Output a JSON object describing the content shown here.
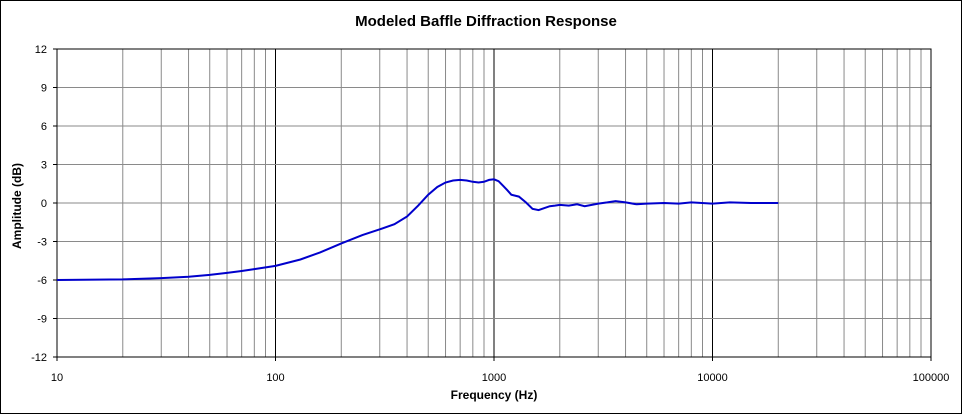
{
  "chart_data": {
    "type": "line",
    "title": "Modeled Baffle Diffraction Response",
    "xlabel": "Frequency (Hz)",
    "ylabel": "Amplitude (dB)",
    "x_scale": "log",
    "xlim": [
      10,
      100000
    ],
    "ylim": [
      -12,
      12
    ],
    "x_ticks": [
      "10",
      "100",
      "1000",
      "10000",
      "100000"
    ],
    "y_ticks": [
      "12",
      "9",
      "6",
      "3",
      "0",
      "-3",
      "-6",
      "-9",
      "-12"
    ],
    "grid": true,
    "legend": "none",
    "line_color": "#0000cc",
    "series": [
      {
        "x": [
          10,
          20,
          30,
          40,
          50,
          60,
          70,
          80,
          100,
          130,
          160,
          200,
          250,
          300,
          350,
          400,
          450,
          500,
          550,
          600,
          650,
          700,
          750,
          800,
          850,
          900,
          950,
          1000,
          1050,
          1100,
          1150,
          1200,
          1300,
          1400,
          1500,
          1600,
          1700,
          1800,
          1900,
          2000,
          2200,
          2400,
          2600,
          2800,
          3000,
          3300,
          3600,
          4000,
          4500,
          5000,
          6000,
          7000,
          8000,
          10000,
          12000,
          15000,
          18000,
          20000
        ],
        "values": [
          -6.0,
          -5.95,
          -5.85,
          -5.75,
          -5.6,
          -5.45,
          -5.3,
          -5.15,
          -4.9,
          -4.4,
          -3.85,
          -3.15,
          -2.5,
          -2.05,
          -1.65,
          -1.05,
          -0.2,
          0.65,
          1.25,
          1.6,
          1.75,
          1.8,
          1.75,
          1.65,
          1.6,
          1.65,
          1.8,
          1.85,
          1.7,
          1.35,
          1.0,
          0.65,
          0.5,
          0.05,
          -0.45,
          -0.55,
          -0.4,
          -0.25,
          -0.2,
          -0.15,
          -0.2,
          -0.1,
          -0.25,
          -0.15,
          -0.05,
          0.05,
          0.15,
          0.05,
          -0.1,
          -0.05,
          0.0,
          -0.05,
          0.05,
          -0.05,
          0.05,
          0.0,
          0.0,
          0.0
        ]
      }
    ]
  }
}
